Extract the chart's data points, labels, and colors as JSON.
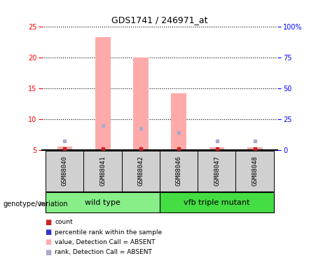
{
  "title": "GDS1741 / 246971_at",
  "samples": [
    "GSM88040",
    "GSM88041",
    "GSM88042",
    "GSM88046",
    "GSM88047",
    "GSM88048"
  ],
  "group_wt_label": "wild type",
  "group_mut_label": "vfb triple mutant",
  "group_wt_color": "#88ee88",
  "group_mut_color": "#44dd44",
  "bar_heights": [
    5.5,
    23.2,
    19.9,
    14.2,
    5.4,
    5.4
  ],
  "rank_values": [
    6.5,
    8.9,
    8.5,
    7.8,
    6.5,
    6.5
  ],
  "count_values": [
    5.2,
    5.2,
    5.2,
    5.2,
    5.2,
    5.2
  ],
  "bar_color": "#ffaaaa",
  "rank_color": "#aaaacc",
  "count_color": "#cc2222",
  "ylim_left": [
    5,
    25
  ],
  "ylim_right": [
    0,
    100
  ],
  "yticks_left": [
    5,
    10,
    15,
    20,
    25
  ],
  "yticks_right": [
    0,
    25,
    50,
    75,
    100
  ],
  "ytick_labels_right": [
    "0",
    "25",
    "50",
    "75",
    "100%"
  ],
  "group_label_x": "genotype/variation",
  "background_color": "#ffffff",
  "label_box_color": "#d0d0d0",
  "bar_width": 0.4,
  "legend_items": [
    {
      "label": "count",
      "color": "#cc2222"
    },
    {
      "label": "percentile rank within the sample",
      "color": "#3333cc"
    },
    {
      "label": "value, Detection Call = ABSENT",
      "color": "#ffaaaa"
    },
    {
      "label": "rank, Detection Call = ABSENT",
      "color": "#aaaacc"
    }
  ]
}
